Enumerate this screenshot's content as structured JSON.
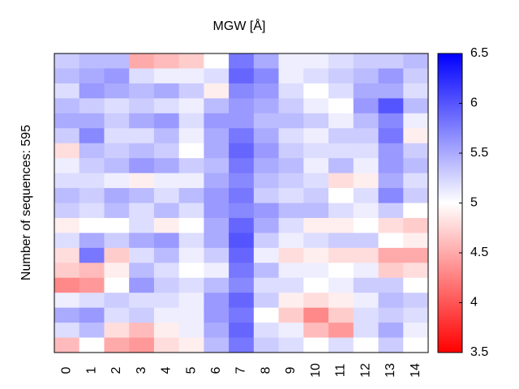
{
  "chart_data": {
    "type": "heatmap",
    "title": "MGW [Å]",
    "ylabel": "Number of sequences: 595",
    "categories": [
      "0",
      "1",
      "2",
      "3",
      "4",
      "5",
      "6",
      "7",
      "8",
      "9",
      "10",
      "11",
      "12",
      "13",
      "14"
    ],
    "colormap": [
      "#ff0000",
      "#ffffff",
      "#0000ff"
    ],
    "zlim": [
      3.5,
      6.5
    ],
    "zticks": [
      3.5,
      4,
      4.5,
      5,
      5.5,
      6,
      6.5
    ],
    "values": [
      [
        5.3,
        5.4,
        5.2,
        5.4,
        5.5,
        5.3,
        4.8,
        5.1,
        5.2,
        5.4,
        5.3,
        4.9,
        5.2,
        4.8,
        4.7,
        4.3,
        5.1,
        5.5,
        5.2,
        4.6
      ],
      [
        5.4,
        5.5,
        5.6,
        5.3,
        5.5,
        5.7,
        5.4,
        5.3,
        5.2,
        5.3,
        5.2,
        5.0,
        5.5,
        5.8,
        4.6,
        4.4,
        5.2,
        5.6,
        5.4,
        5.0
      ],
      [
        5.4,
        5.6,
        5.5,
        5.2,
        5.3,
        5.2,
        5.3,
        5.4,
        5.1,
        5.5,
        5.4,
        5.0,
        5.3,
        4.7,
        4.9,
        5.0,
        5.3,
        5.2,
        4.8,
        4.5
      ],
      [
        4.5,
        5.2,
        5.4,
        5.3,
        5.5,
        5.2,
        5.4,
        5.6,
        4.9,
        5.4,
        5.2,
        5.2,
        5.5,
        5.2,
        5.4,
        5.6,
        5.2,
        5.3,
        4.6,
        4.4
      ],
      [
        4.6,
        5.1,
        5.5,
        5.2,
        5.6,
        5.4,
        5.3,
        5.5,
        5.1,
        5.2,
        5.4,
        4.9,
        5.6,
        5.4,
        5.2,
        5.3,
        5.2,
        5.1,
        4.9,
        4.8
      ],
      [
        4.7,
        5.1,
        5.3,
        5.1,
        5.2,
        5.1,
        5.0,
        5.3,
        5.1,
        5.4,
        5.2,
        5.0,
        5.2,
        5.1,
        5.0,
        5.2,
        5.1,
        5.1,
        5.1,
        4.9
      ],
      [
        5.0,
        5.2,
        4.9,
        5.4,
        5.6,
        5.5,
        5.5,
        5.4,
        5.5,
        5.6,
        5.6,
        5.5,
        5.5,
        5.3,
        5.1,
        5.4,
        5.6,
        5.6,
        5.5,
        5.4
      ],
      [
        5.8,
        5.9,
        5.7,
        5.6,
        5.6,
        5.8,
        5.9,
        5.8,
        5.7,
        5.8,
        5.7,
        5.9,
        6.0,
        5.9,
        5.8,
        5.7,
        5.9,
        5.8,
        5.9,
        5.8
      ],
      [
        5.5,
        5.7,
        5.6,
        5.5,
        5.4,
        5.5,
        5.6,
        5.5,
        5.4,
        5.3,
        5.6,
        5.5,
        5.3,
        5.1,
        5.4,
        5.2,
        5.3,
        5.0,
        5.2,
        5.3
      ],
      [
        5.1,
        5.1,
        5.2,
        5.3,
        5.4,
        5.2,
        5.3,
        5.4,
        5.3,
        5.2,
        5.4,
        5.2,
        5.1,
        4.8,
        5.1,
        5.2,
        4.9,
        4.7,
        5.1,
        5.2
      ],
      [
        5.1,
        5.2,
        5.0,
        5.1,
        5.3,
        5.1,
        5.2,
        5.1,
        5.2,
        5.3,
        5.4,
        4.9,
        5.2,
        4.9,
        5.1,
        5.0,
        4.8,
        4.3,
        4.6,
        5.0
      ],
      [
        5.2,
        5.3,
        5.2,
        5.0,
        5.1,
        5.3,
        5.2,
        5.4,
        4.8,
        5.0,
        5.2,
        4.9,
        5.3,
        4.8,
        5.0,
        5.1,
        4.9,
        4.7,
        4.4,
        5.2
      ],
      [
        5.3,
        5.4,
        5.5,
        5.6,
        5.4,
        5.3,
        5.2,
        5.1,
        4.9,
        5.2,
        5.1,
        5.0,
        5.3,
        4.8,
        5.1,
        5.3,
        5.1,
        5.2,
        5.2,
        5.0
      ],
      [
        5.3,
        5.6,
        5.5,
        6.0,
        5.7,
        5.8,
        5.6,
        5.6,
        5.5,
        5.7,
        5.3,
        4.8,
        5.0,
        4.5,
        4.7,
        5.3,
        5.4,
        5.3,
        5.5,
        5.3
      ],
      [
        5.4,
        5.3,
        5.2,
        5.4,
        5.1,
        4.9,
        5.3,
        5.4,
        5.2,
        5.3,
        5.0,
        4.7,
        4.9,
        4.5,
        4.8,
        5.0,
        5.3,
        5.2,
        5.1,
        5.0
      ]
    ]
  }
}
